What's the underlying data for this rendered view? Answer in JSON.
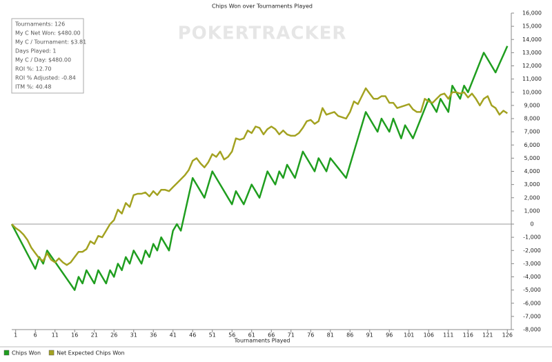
{
  "chart_data": {
    "type": "line",
    "title": "Chips Won over Tournaments Played",
    "x_label": "Tournaments Played",
    "watermark": "POKERTRACKER",
    "stats": [
      "Tournaments: 126",
      "My C Net Won: $480.00",
      "My C / Tournament: $3.81",
      "Days Played: 1",
      "My C / Day: $480.00",
      "ROI %: 12.70",
      "ROI % Adjusted: -0.84",
      "ITM %: 40.48"
    ],
    "legend": "bottom-left",
    "zero_line": true,
    "xlim": [
      0,
      127
    ],
    "xticks": [
      1,
      6,
      11,
      16,
      21,
      26,
      31,
      36,
      41,
      46,
      51,
      56,
      61,
      66,
      71,
      76,
      81,
      86,
      91,
      96,
      101,
      106,
      111,
      116,
      121,
      126
    ],
    "ylim": [
      -8000,
      16000
    ],
    "yticks": [
      {
        "value": -8000,
        "label": "-8,000"
      },
      {
        "value": -7000,
        "label": "-7,000"
      },
      {
        "value": -6000,
        "label": "-6,000"
      },
      {
        "value": -5000,
        "label": "-5,000"
      },
      {
        "value": -4000,
        "label": "-4,000"
      },
      {
        "value": -3000,
        "label": "-3,000"
      },
      {
        "value": -2000,
        "label": "-2,000"
      },
      {
        "value": -1000,
        "label": "-1,000"
      },
      0,
      {
        "value": 1000,
        "label": "1,000"
      },
      {
        "value": 2000,
        "label": "2,000"
      },
      {
        "value": 3000,
        "label": "3,000"
      },
      {
        "value": 4000,
        "label": "4,000"
      },
      {
        "value": 5000,
        "label": "5,000"
      },
      {
        "value": 6000,
        "label": "6,000"
      },
      {
        "value": 7000,
        "label": "7,000"
      },
      {
        "value": 8000,
        "label": "8,000"
      },
      {
        "value": 9000,
        "label": "9,000"
      },
      {
        "value": 10000,
        "label": "10,000"
      },
      {
        "value": 11000,
        "label": "11,000"
      },
      {
        "value": 12000,
        "label": "12,000"
      },
      {
        "value": 13000,
        "label": "13,000"
      },
      {
        "value": 14000,
        "label": "14,000"
      },
      {
        "value": 15000,
        "label": "15,000"
      },
      {
        "value": 16000,
        "label": "16,000"
      }
    ],
    "x": [
      0,
      1,
      2,
      3,
      4,
      5,
      6,
      7,
      8,
      9,
      10,
      11,
      12,
      13,
      14,
      15,
      16,
      17,
      18,
      19,
      20,
      21,
      22,
      23,
      24,
      25,
      26,
      27,
      28,
      29,
      30,
      31,
      32,
      33,
      34,
      35,
      36,
      37,
      38,
      39,
      40,
      41,
      42,
      43,
      44,
      45,
      46,
      47,
      48,
      49,
      50,
      51,
      52,
      53,
      54,
      55,
      56,
      57,
      58,
      59,
      60,
      61,
      62,
      63,
      64,
      65,
      66,
      67,
      68,
      69,
      70,
      71,
      72,
      73,
      74,
      75,
      76,
      77,
      78,
      79,
      80,
      81,
      82,
      83,
      84,
      85,
      86,
      87,
      88,
      89,
      90,
      91,
      92,
      93,
      94,
      95,
      96,
      97,
      98,
      99,
      100,
      101,
      102,
      103,
      104,
      105,
      106,
      107,
      108,
      109,
      110,
      111,
      112,
      113,
      114,
      115,
      116,
      117,
      118,
      119,
      120,
      121,
      122,
      123,
      124,
      125,
      126
    ],
    "series": [
      {
        "name": "Chips Won",
        "color": "#1f9e1f",
        "values": [
          0,
          -567,
          -1133,
          -1700,
          -2267,
          -2833,
          -3400,
          -2500,
          -3000,
          -2000,
          -2429,
          -2857,
          -3286,
          -3714,
          -4143,
          -4571,
          -5000,
          -4000,
          -4500,
          -3500,
          -4000,
          -4500,
          -3500,
          -4000,
          -4500,
          -3500,
          -4000,
          -3000,
          -3500,
          -2500,
          -3000,
          -2000,
          -2500,
          -3000,
          -2000,
          -2500,
          -1500,
          -2000,
          -1000,
          -1500,
          -2000,
          -500,
          0,
          -500,
          833,
          2167,
          3500,
          3000,
          2500,
          2000,
          3000,
          4000,
          3500,
          3000,
          2500,
          2000,
          1500,
          2500,
          2000,
          1500,
          2250,
          3000,
          2500,
          2000,
          3000,
          4000,
          3500,
          3000,
          4000,
          3500,
          4500,
          4000,
          3500,
          4500,
          5500,
          5000,
          4500,
          4000,
          5000,
          4500,
          4000,
          5000,
          4625,
          4250,
          3875,
          3500,
          4500,
          5500,
          6500,
          7500,
          8500,
          8000,
          7500,
          7000,
          8000,
          7500,
          7000,
          8000,
          7250,
          6500,
          7500,
          7000,
          6500,
          7250,
          8000,
          8750,
          9500,
          9000,
          8500,
          9500,
          9000,
          8500,
          10500,
          10000,
          9500,
          10500,
          10000,
          10750,
          11500,
          12250,
          13000,
          12500,
          12000,
          11500,
          12167,
          12833,
          13500
        ]
      },
      {
        "name": "Net Expected Chips Won",
        "color": "#a3a221",
        "values": [
          0,
          -300,
          -500,
          -800,
          -1200,
          -1800,
          -2200,
          -2600,
          -2800,
          -2200,
          -2700,
          -2900,
          -2600,
          -2900,
          -3100,
          -2900,
          -2500,
          -2100,
          -2100,
          -1900,
          -1300,
          -1500,
          -900,
          -1000,
          -500,
          0,
          300,
          1100,
          800,
          1600,
          1300,
          2200,
          2300,
          2300,
          2400,
          2100,
          2500,
          2200,
          2600,
          2600,
          2500,
          2800,
          3100,
          3400,
          3700,
          4100,
          4800,
          5000,
          4600,
          4300,
          4700,
          5300,
          5100,
          5500,
          4900,
          5100,
          5500,
          6500,
          6400,
          6500,
          7100,
          6900,
          7400,
          7300,
          6800,
          7200,
          7400,
          7200,
          6800,
          7100,
          6800,
          6700,
          6700,
          6900,
          7300,
          7800,
          7900,
          7600,
          7800,
          8800,
          8300,
          8400,
          8500,
          8200,
          8100,
          8000,
          8500,
          9300,
          9100,
          9700,
          10300,
          9900,
          9500,
          9500,
          9700,
          9700,
          9200,
          9200,
          8800,
          8900,
          9000,
          9100,
          8700,
          8500,
          8500,
          9500,
          9300,
          9200,
          9500,
          9800,
          9900,
          9500,
          10000,
          10000,
          9900,
          10000,
          9600,
          9900,
          9500,
          9000,
          9500,
          9700,
          9000,
          8800,
          8300,
          8600,
          8400
        ]
      }
    ]
  }
}
